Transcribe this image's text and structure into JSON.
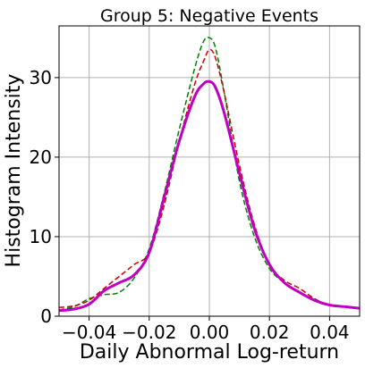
{
  "chart_data": {
    "type": "line",
    "title": "Group 5: Negative Events",
    "xlabel": "Daily Abnormal Log-return",
    "ylabel": "Histogram Intensity",
    "xlim": [
      -0.05,
      0.05
    ],
    "ylim": [
      0,
      36.5
    ],
    "grid": true,
    "x_ticks": [
      -0.04,
      -0.02,
      0.0,
      0.02,
      0.04
    ],
    "x_tick_labels": [
      "−0.04",
      "−0.02",
      "0.00",
      "0.02",
      "0.04"
    ],
    "y_ticks": [
      0,
      10,
      20,
      30
    ],
    "y_tick_labels": [
      "0",
      "10",
      "20",
      "30"
    ],
    "series": [
      {
        "color": "#008000",
        "style": "dashed",
        "x": [
          -0.05,
          -0.045,
          -0.04,
          -0.035,
          -0.03,
          -0.025,
          -0.02,
          -0.015,
          -0.01,
          -0.005,
          -0.002,
          0.0,
          0.002,
          0.005,
          0.01,
          0.015,
          0.02,
          0.025,
          0.03,
          0.035,
          0.04,
          0.045,
          0.05
        ],
        "y": [
          0.8,
          1.2,
          2.2,
          2.7,
          3.0,
          4.8,
          8.5,
          15.5,
          23.5,
          31.0,
          34.5,
          35.0,
          33.8,
          28.0,
          17.0,
          10.0,
          6.0,
          4.2,
          3.0,
          2.0,
          1.4,
          1.2,
          1.0
        ]
      },
      {
        "color": "#cc0000",
        "style": "dashed",
        "x": [
          -0.05,
          -0.045,
          -0.04,
          -0.035,
          -0.03,
          -0.025,
          -0.02,
          -0.015,
          -0.01,
          -0.005,
          -0.002,
          0.0,
          0.002,
          0.005,
          0.01,
          0.015,
          0.02,
          0.025,
          0.03,
          0.035,
          0.04,
          0.045,
          0.05
        ],
        "y": [
          1.1,
          1.3,
          2.0,
          3.5,
          5.0,
          6.5,
          8.0,
          14.0,
          22.0,
          29.0,
          32.0,
          33.5,
          32.5,
          28.0,
          19.0,
          11.5,
          6.5,
          4.5,
          3.5,
          2.2,
          1.4,
          1.2,
          1.0
        ]
      },
      {
        "color": "#c000c0",
        "style": "solid",
        "x": [
          -0.05,
          -0.045,
          -0.04,
          -0.035,
          -0.03,
          -0.025,
          -0.02,
          -0.015,
          -0.01,
          -0.005,
          -0.002,
          0.0,
          0.002,
          0.005,
          0.01,
          0.015,
          0.02,
          0.025,
          0.03,
          0.035,
          0.04,
          0.045,
          0.05
        ],
        "y": [
          0.7,
          0.9,
          1.5,
          3.2,
          4.2,
          5.2,
          8.0,
          15.0,
          22.0,
          27.5,
          29.2,
          29.5,
          28.8,
          25.5,
          18.0,
          11.0,
          6.5,
          4.2,
          3.0,
          2.0,
          1.4,
          1.2,
          1.0
        ]
      }
    ]
  }
}
